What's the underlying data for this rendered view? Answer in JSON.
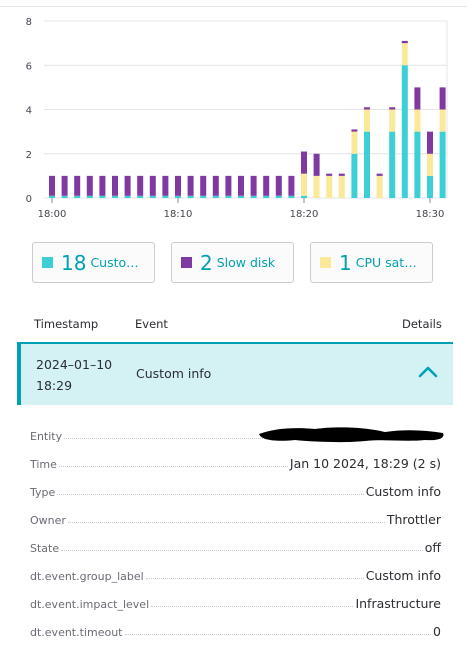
{
  "chart_data": {
    "type": "bar",
    "stacked": true,
    "y_ticks": [
      "0",
      "2",
      "4",
      "6",
      "8"
    ],
    "ylim": [
      0,
      8
    ],
    "x_ticks": [
      "18:00",
      "18:10",
      "18:20",
      "18:30"
    ],
    "x_tick_minutes": [
      0,
      10,
      20,
      30
    ],
    "x_minutes": [
      0,
      1,
      2,
      3,
      4,
      5,
      6,
      7,
      8,
      9,
      10,
      11,
      12,
      13,
      14,
      15,
      16,
      17,
      18,
      19,
      20,
      21,
      22,
      23,
      24,
      25,
      26,
      27,
      28,
      29,
      30,
      31
    ],
    "series": [
      {
        "name": "Custom info",
        "color": "#3ccfd6",
        "values": [
          0.1,
          0.1,
          0.1,
          0.1,
          0.1,
          0.1,
          0.1,
          0.1,
          0.1,
          0.1,
          0.1,
          0.1,
          0.1,
          0.1,
          0.1,
          0.1,
          0.1,
          0.1,
          0.1,
          0.1,
          0.1,
          0,
          0,
          0,
          2,
          3,
          0,
          3,
          6,
          3,
          1,
          3
        ]
      },
      {
        "name": "CPU saturation",
        "color": "#fbe99a",
        "values": [
          0,
          0,
          0,
          0,
          0,
          0,
          0,
          0,
          0,
          0,
          0,
          0,
          0,
          0,
          0,
          0,
          0,
          0,
          0,
          0,
          1,
          1,
          1,
          1,
          1,
          1,
          1,
          1,
          1,
          1,
          1,
          1
        ]
      },
      {
        "name": "Slow disk",
        "color": "#7f3aa1",
        "values": [
          0.9,
          0.9,
          0.9,
          0.9,
          0.9,
          0.9,
          0.9,
          0.9,
          0.9,
          0.9,
          0.9,
          0.9,
          0.9,
          0.9,
          0.9,
          0.9,
          0.9,
          0.9,
          0.9,
          0.9,
          1,
          1,
          0.1,
          0.1,
          0.1,
          0.1,
          0.1,
          0.1,
          0.1,
          1,
          1,
          1
        ]
      }
    ],
    "grid": true
  },
  "legend": [
    {
      "count": "18",
      "label": "Custom...",
      "color": "#3ccfd6"
    },
    {
      "count": "2",
      "label": "Slow disk",
      "color": "#7f3aa1"
    },
    {
      "count": "1",
      "label": "CPU satu...",
      "color": "#fbe99a"
    }
  ],
  "table": {
    "headers": {
      "timestamp": "Timestamp",
      "event": "Event",
      "details": "Details"
    },
    "selected_row": {
      "timestamp": "2024–01–10 18:29",
      "event": "Custom info"
    }
  },
  "details": [
    {
      "key": "Entity",
      "value": ""
    },
    {
      "key": "Time",
      "value": "Jan 10 2024, 18:29 (2 s)"
    },
    {
      "key": "Type",
      "value": "Custom info"
    },
    {
      "key": "Owner",
      "value": "Throttler"
    },
    {
      "key": "State",
      "value": "off"
    },
    {
      "key": "dt.event.group_label",
      "value": "Custom info"
    },
    {
      "key": "dt.event.impact_level",
      "value": "Infrastructure"
    },
    {
      "key": "dt.event.timeout",
      "value": "0"
    }
  ],
  "colors": {
    "accent": "#00a1b2",
    "selected_row_bg": "#d4f2f4"
  }
}
